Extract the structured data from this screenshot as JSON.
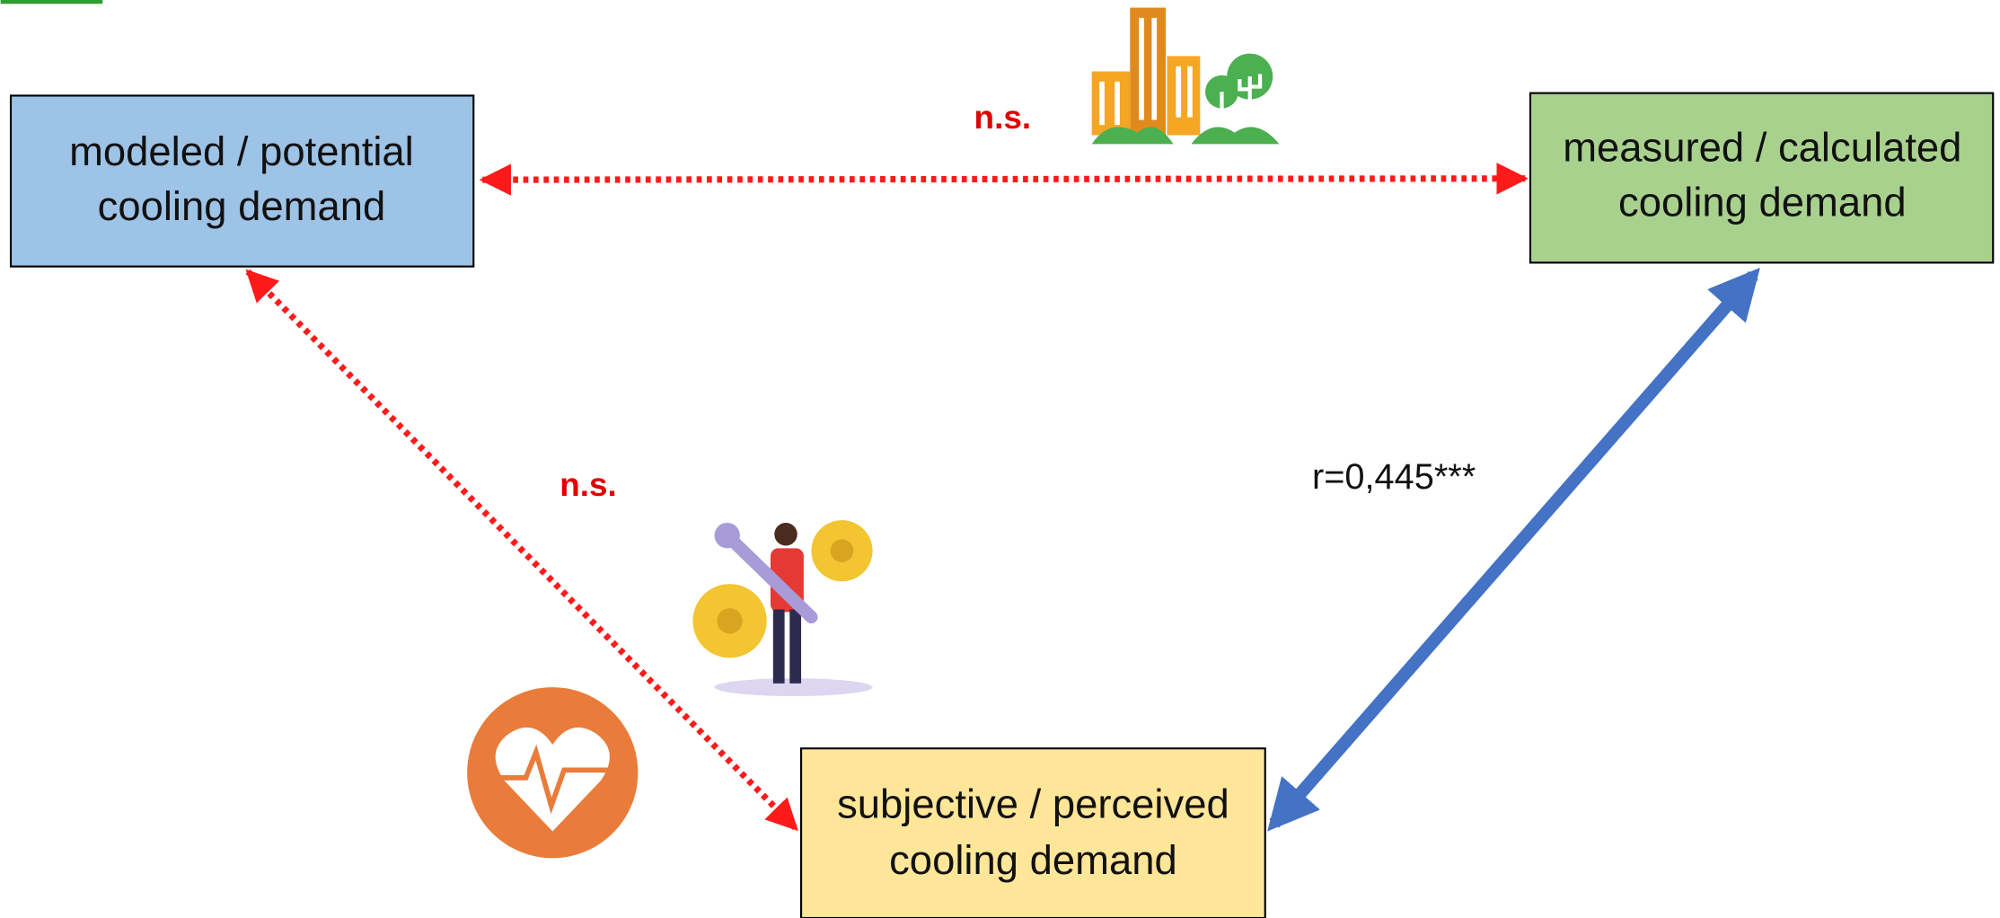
{
  "nodes": [
    {
      "lines": [
        "modeled / potential",
        "cooling demand"
      ]
    },
    {
      "lines": [
        "measured / calculated",
        "cooling demand"
      ]
    },
    {
      "lines": [
        "subjective / perceived",
        "cooling demand"
      ]
    }
  ],
  "edges": [
    {
      "label": "n.s."
    },
    {
      "label": "n.s."
    },
    {
      "label": "r=0,445***"
    }
  ]
}
